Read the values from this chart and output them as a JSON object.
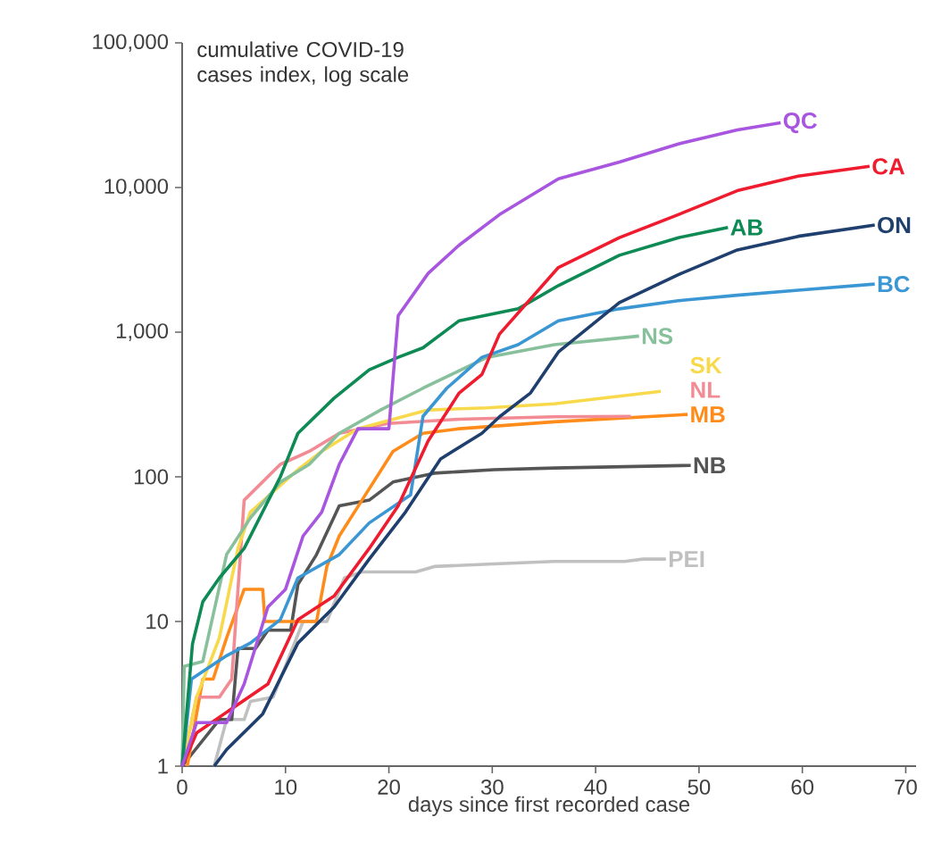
{
  "chart_data": {
    "type": "line",
    "ylabel": "cumulative COVID-19 cases index, log scale",
    "xlabel": "days since first recorded case",
    "log": "y",
    "xlim": [
      0,
      71
    ],
    "ylim": [
      1,
      100000
    ],
    "xticks": [
      0,
      10,
      20,
      30,
      40,
      50,
      60,
      70
    ],
    "yticks": [
      {
        "value": 1,
        "label": "1"
      },
      {
        "value": 10,
        "label": "10"
      },
      {
        "value": 100,
        "label": "100"
      },
      {
        "value": 1000,
        "label": "1,000"
      },
      {
        "value": 10000,
        "label": "10,000"
      },
      {
        "value": 100000,
        "label": "100,000"
      }
    ],
    "series": [
      {
        "name": "PEI",
        "color": "#c0c0c0",
        "x": [
          3.1,
          4.3,
          6,
          6.6,
          8.8,
          11.7,
          14,
          15.7,
          17.4,
          22.6,
          24.4,
          30.2,
          36,
          42.8,
          44.6,
          46.8
        ],
        "values": [
          1,
          2.1,
          2.1,
          2.8,
          3,
          10,
          10,
          20,
          22,
          22,
          24,
          25,
          26,
          26,
          27,
          27
        ]
      },
      {
        "name": "NB",
        "color": "#555555",
        "x": [
          0,
          3.6,
          4.8,
          5.4,
          7.1,
          8.3,
          10.5,
          11.2,
          13,
          15.2,
          18.1,
          20.4,
          24.4,
          30.2,
          36,
          49.2
        ],
        "values": [
          1,
          2.1,
          2.1,
          6.5,
          6.5,
          8.7,
          8.7,
          18,
          29,
          63,
          69,
          92,
          106,
          112,
          115,
          120
        ]
      },
      {
        "name": "MB",
        "color": "#ff8c1a",
        "x": [
          0.5,
          2,
          3,
          4.3,
          6,
          7.8,
          8,
          13,
          14,
          15.2,
          17.4,
          20.4,
          23.3,
          26.8,
          36,
          48.9
        ],
        "values": [
          1,
          4,
          4,
          7.7,
          16.7,
          16.7,
          10,
          10,
          24,
          39,
          69,
          150,
          200,
          215,
          240,
          270
        ]
      },
      {
        "name": "NL",
        "color": "#f28b93",
        "x": [
          0,
          1.4,
          3.6,
          4.8,
          6,
          9.5,
          12.3,
          15.2,
          19.9,
          26.8,
          36,
          43.4
        ],
        "values": [
          1,
          3,
          3,
          4,
          69,
          122,
          150,
          200,
          234,
          250,
          260,
          262
        ]
      },
      {
        "name": "SK",
        "color": "#f9d94c",
        "x": [
          0,
          1.4,
          3.6,
          5.4,
          6.6,
          11.2,
          13.5,
          17,
          23.8,
          29.5,
          36,
          46.3
        ],
        "values": [
          1,
          3,
          7.7,
          32,
          57,
          112,
          150,
          215,
          290,
          300,
          320,
          390
        ]
      },
      {
        "name": "NS",
        "color": "#88c09c",
        "x": [
          0,
          0.2,
          2,
          4.3,
          6.6,
          9.5,
          12.3,
          15.2,
          19.2,
          23.3,
          29.5,
          36,
          44.2
        ],
        "values": [
          1,
          4.9,
          5.3,
          29,
          52,
          92,
          122,
          200,
          290,
          410,
          670,
          820,
          940
        ]
      },
      {
        "name": "BC",
        "color": "#3b97d3",
        "x": [
          0,
          0.9,
          4.3,
          6.6,
          9.5,
          11.2,
          15.2,
          18.1,
          22.1,
          23.3,
          25.6,
          29,
          32.5,
          36.4,
          42.3,
          48,
          53.7,
          59.6,
          67
        ],
        "values": [
          1,
          4,
          5.8,
          7.1,
          10.3,
          20,
          29,
          48,
          75,
          262,
          410,
          670,
          820,
          1200,
          1450,
          1650,
          1800,
          1950,
          2150
        ]
      },
      {
        "name": "AB",
        "color": "#0e8a55",
        "x": [
          0,
          1,
          2,
          3.6,
          6,
          9.5,
          11.2,
          14.7,
          18.1,
          20.9,
          23.3,
          26.8,
          32.5,
          36.4,
          42.3,
          48,
          52.8
        ],
        "values": [
          1,
          7,
          13.7,
          20,
          32,
          100,
          200,
          350,
          550,
          670,
          780,
          1200,
          1450,
          2100,
          3400,
          4500,
          5300
        ]
      },
      {
        "name": "ON",
        "color": "#1f3f6e",
        "x": [
          3.1,
          4.3,
          7.8,
          11.2,
          14.7,
          18.1,
          21.6,
          25,
          29,
          30.7,
          33.7,
          36.4,
          42.3,
          48,
          53.7,
          59.6,
          67
        ],
        "values": [
          1,
          1.3,
          2.3,
          7.1,
          12.6,
          27,
          57,
          133,
          200,
          260,
          380,
          730,
          1600,
          2500,
          3700,
          4600,
          5500
        ]
      },
      {
        "name": "CA",
        "color": "#ee1c2e",
        "x": [
          0,
          1.4,
          8.3,
          11.2,
          14.7,
          18.1,
          20.9,
          23.8,
          26.8,
          29,
          30.7,
          36.4,
          42.3,
          48,
          53.7,
          59.6,
          66.5
        ],
        "values": [
          1,
          1.7,
          3.7,
          10.3,
          15,
          32,
          63,
          177,
          380,
          510,
          970,
          2800,
          4500,
          6500,
          9500,
          12000,
          14000
        ]
      },
      {
        "name": "QC",
        "color": "#a855e0",
        "x": [
          0,
          1.4,
          4.3,
          6,
          8.3,
          10,
          11.7,
          13.5,
          15.2,
          17,
          20,
          20.9,
          23.8,
          26.8,
          30.7,
          36.4,
          42.3,
          48,
          53.7,
          57.9
        ],
        "values": [
          1,
          2,
          2,
          3.7,
          12.6,
          16.7,
          39,
          57,
          122,
          215,
          215,
          1300,
          2550,
          4000,
          6500,
          11500,
          15000,
          20000,
          25000,
          28000
        ]
      }
    ]
  }
}
